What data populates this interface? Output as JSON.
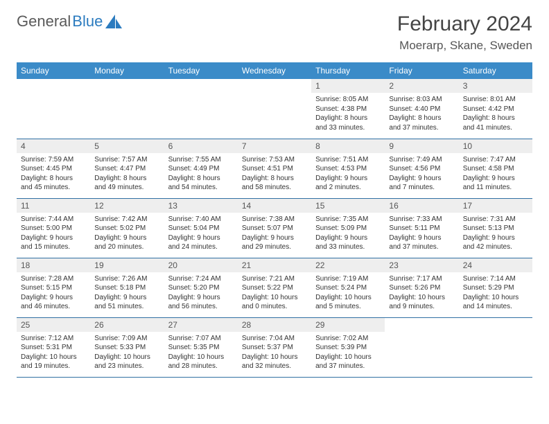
{
  "logo": {
    "text1": "General",
    "text2": "Blue"
  },
  "header": {
    "title": "February 2024",
    "location": "Moerarp, Skane, Sweden"
  },
  "colors": {
    "header_bg": "#3b8bc8",
    "header_fg": "#ffffff",
    "daynum_bg": "#eeeeee",
    "row_border": "#2f6fa3",
    "title_color": "#444444",
    "body_text": "#333333"
  },
  "days_of_week": [
    "Sunday",
    "Monday",
    "Tuesday",
    "Wednesday",
    "Thursday",
    "Friday",
    "Saturday"
  ],
  "weeks": [
    [
      null,
      null,
      null,
      null,
      {
        "n": "1",
        "sr": "8:05 AM",
        "ss": "4:38 PM",
        "dl": "8 hours and 33 minutes."
      },
      {
        "n": "2",
        "sr": "8:03 AM",
        "ss": "4:40 PM",
        "dl": "8 hours and 37 minutes."
      },
      {
        "n": "3",
        "sr": "8:01 AM",
        "ss": "4:42 PM",
        "dl": "8 hours and 41 minutes."
      }
    ],
    [
      {
        "n": "4",
        "sr": "7:59 AM",
        "ss": "4:45 PM",
        "dl": "8 hours and 45 minutes."
      },
      {
        "n": "5",
        "sr": "7:57 AM",
        "ss": "4:47 PM",
        "dl": "8 hours and 49 minutes."
      },
      {
        "n": "6",
        "sr": "7:55 AM",
        "ss": "4:49 PM",
        "dl": "8 hours and 54 minutes."
      },
      {
        "n": "7",
        "sr": "7:53 AM",
        "ss": "4:51 PM",
        "dl": "8 hours and 58 minutes."
      },
      {
        "n": "8",
        "sr": "7:51 AM",
        "ss": "4:53 PM",
        "dl": "9 hours and 2 minutes."
      },
      {
        "n": "9",
        "sr": "7:49 AM",
        "ss": "4:56 PM",
        "dl": "9 hours and 7 minutes."
      },
      {
        "n": "10",
        "sr": "7:47 AM",
        "ss": "4:58 PM",
        "dl": "9 hours and 11 minutes."
      }
    ],
    [
      {
        "n": "11",
        "sr": "7:44 AM",
        "ss": "5:00 PM",
        "dl": "9 hours and 15 minutes."
      },
      {
        "n": "12",
        "sr": "7:42 AM",
        "ss": "5:02 PM",
        "dl": "9 hours and 20 minutes."
      },
      {
        "n": "13",
        "sr": "7:40 AM",
        "ss": "5:04 PM",
        "dl": "9 hours and 24 minutes."
      },
      {
        "n": "14",
        "sr": "7:38 AM",
        "ss": "5:07 PM",
        "dl": "9 hours and 29 minutes."
      },
      {
        "n": "15",
        "sr": "7:35 AM",
        "ss": "5:09 PM",
        "dl": "9 hours and 33 minutes."
      },
      {
        "n": "16",
        "sr": "7:33 AM",
        "ss": "5:11 PM",
        "dl": "9 hours and 37 minutes."
      },
      {
        "n": "17",
        "sr": "7:31 AM",
        "ss": "5:13 PM",
        "dl": "9 hours and 42 minutes."
      }
    ],
    [
      {
        "n": "18",
        "sr": "7:28 AM",
        "ss": "5:15 PM",
        "dl": "9 hours and 46 minutes."
      },
      {
        "n": "19",
        "sr": "7:26 AM",
        "ss": "5:18 PM",
        "dl": "9 hours and 51 minutes."
      },
      {
        "n": "20",
        "sr": "7:24 AM",
        "ss": "5:20 PM",
        "dl": "9 hours and 56 minutes."
      },
      {
        "n": "21",
        "sr": "7:21 AM",
        "ss": "5:22 PM",
        "dl": "10 hours and 0 minutes."
      },
      {
        "n": "22",
        "sr": "7:19 AM",
        "ss": "5:24 PM",
        "dl": "10 hours and 5 minutes."
      },
      {
        "n": "23",
        "sr": "7:17 AM",
        "ss": "5:26 PM",
        "dl": "10 hours and 9 minutes."
      },
      {
        "n": "24",
        "sr": "7:14 AM",
        "ss": "5:29 PM",
        "dl": "10 hours and 14 minutes."
      }
    ],
    [
      {
        "n": "25",
        "sr": "7:12 AM",
        "ss": "5:31 PM",
        "dl": "10 hours and 19 minutes."
      },
      {
        "n": "26",
        "sr": "7:09 AM",
        "ss": "5:33 PM",
        "dl": "10 hours and 23 minutes."
      },
      {
        "n": "27",
        "sr": "7:07 AM",
        "ss": "5:35 PM",
        "dl": "10 hours and 28 minutes."
      },
      {
        "n": "28",
        "sr": "7:04 AM",
        "ss": "5:37 PM",
        "dl": "10 hours and 32 minutes."
      },
      {
        "n": "29",
        "sr": "7:02 AM",
        "ss": "5:39 PM",
        "dl": "10 hours and 37 minutes."
      },
      null,
      null
    ]
  ],
  "labels": {
    "sunrise": "Sunrise:",
    "sunset": "Sunset:",
    "daylight": "Daylight:"
  }
}
